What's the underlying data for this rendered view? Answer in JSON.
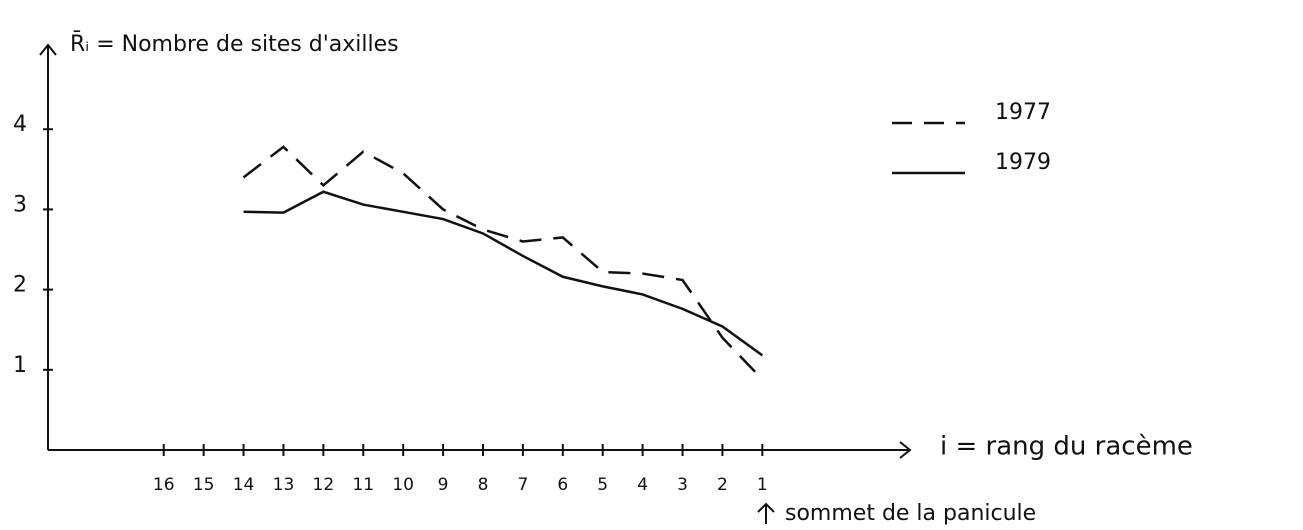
{
  "chart_data": {
    "type": "line",
    "ylabel": "R̄ᵢ = Nombre de sites d'axilles",
    "xlabel": "i = rang du racème",
    "annotation": "sommet de la panicule",
    "x": [
      14,
      13,
      12,
      11,
      10,
      9,
      8,
      7,
      6,
      5,
      4,
      3,
      2,
      1
    ],
    "series": [
      {
        "name": "1977",
        "color": "#111111",
        "dash": true,
        "values": [
          3.4,
          3.78,
          3.3,
          3.72,
          3.45,
          3.0,
          2.75,
          2.6,
          2.65,
          2.22,
          2.2,
          2.12,
          1.4,
          0.88
        ]
      },
      {
        "name": "1979",
        "color": "#111111",
        "dash": false,
        "values": [
          2.97,
          2.96,
          3.22,
          3.06,
          2.97,
          2.88,
          2.7,
          2.42,
          2.16,
          2.04,
          1.94,
          1.76,
          1.54,
          1.18
        ]
      }
    ],
    "xlim": [
      18.9,
      -2.7
    ],
    "xticks": [
      16,
      15,
      14,
      13,
      12,
      11,
      10,
      9,
      8,
      7,
      6,
      5,
      4,
      3,
      2,
      1
    ],
    "ylim": [
      0,
      5.05
    ],
    "yticks": [
      1,
      2,
      3,
      4
    ],
    "grid": false,
    "legend": "upper right"
  }
}
